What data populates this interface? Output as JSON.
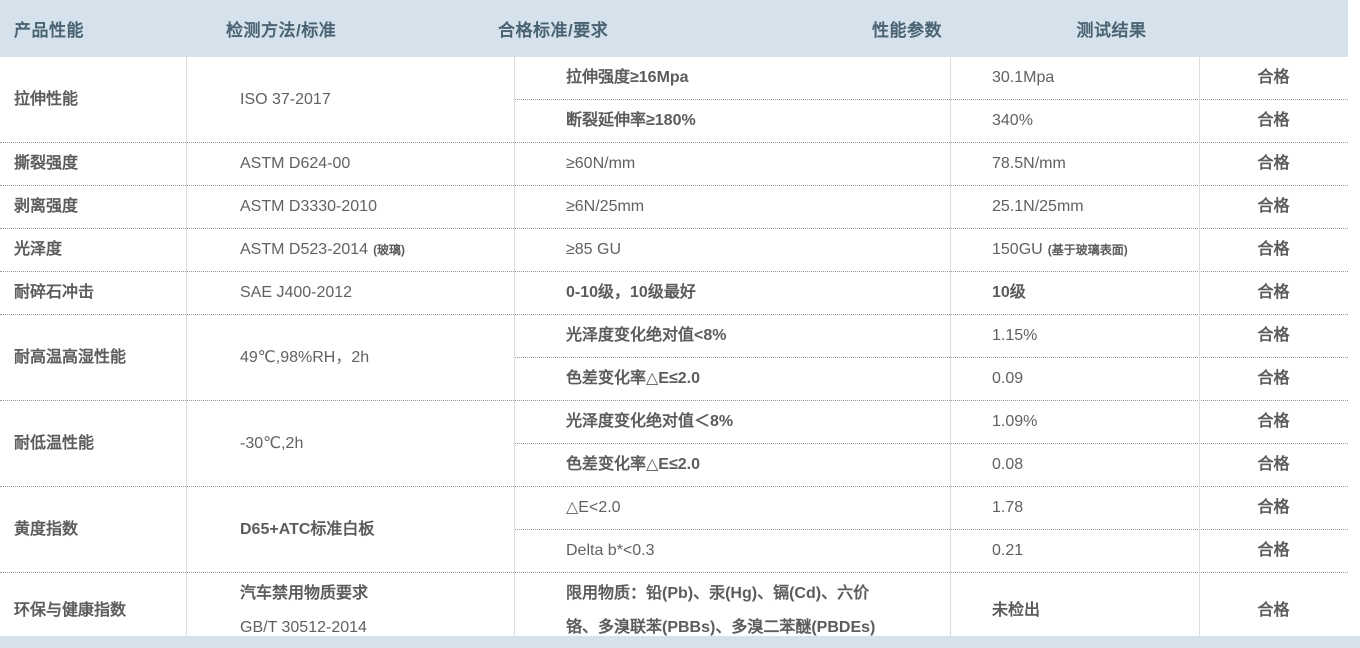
{
  "table": {
    "columns": [
      "产品性能",
      "检测方法/标准",
      "合格标准/要求",
      "性能参数",
      "测试结果"
    ],
    "groups": [
      {
        "property": "拉伸性能",
        "method": "ISO 37-2017",
        "rows": [
          {
            "requirement": "拉伸强度≥16Mpa",
            "value": "30.1Mpa",
            "result": "合格"
          },
          {
            "requirement": "断裂延伸率≥180%",
            "value": "340%",
            "result": "合格"
          }
        ]
      },
      {
        "property": "撕裂强度",
        "method": "ASTM D624-00",
        "rows": [
          {
            "requirement": "≥60N/mm",
            "value": "78.5N/mm",
            "result": "合格"
          }
        ]
      },
      {
        "property": "剥离强度",
        "method": "ASTM D3330-2010",
        "rows": [
          {
            "requirement": "≥6N/25mm",
            "value": "25.1N/25mm",
            "result": "合格"
          }
        ]
      },
      {
        "property": "光泽度",
        "method": "ASTM D523-2014",
        "method_note": "(玻璃)",
        "rows": [
          {
            "requirement": "≥85 GU",
            "value": "150GU",
            "value_note": "(基于玻璃表面)",
            "result": "合格"
          }
        ]
      },
      {
        "property": "耐碎石冲击",
        "method": "SAE J400-2012",
        "rows": [
          {
            "requirement": "0-10级，10级最好",
            "value": "10级",
            "result": "合格"
          }
        ]
      },
      {
        "property": "耐高温高湿性能",
        "method": "49℃,98%RH，2h",
        "rows": [
          {
            "requirement": "光泽度变化绝对值<8%",
            "value": "1.15%",
            "result": "合格"
          },
          {
            "requirement": "色差变化率△E≤2.0",
            "value": "0.09",
            "result": "合格"
          }
        ]
      },
      {
        "property": "耐低温性能",
        "method": "-30℃,2h",
        "rows": [
          {
            "requirement": "光泽度变化绝对值＜8%",
            "value": "1.09%",
            "result": "合格"
          },
          {
            "requirement": "色差变化率△E≤2.0",
            "value": "0.08",
            "result": "合格"
          }
        ]
      },
      {
        "property": "黄度指数",
        "method": "D65+ATC标准白板",
        "rows": [
          {
            "requirement": "△E<2.0",
            "value": "1.78",
            "result": "合格"
          },
          {
            "requirement": "Delta b*<0.3",
            "value": "0.21",
            "result": "合格"
          }
        ]
      },
      {
        "property": "环保与健康指数",
        "method": "汽车禁用物质要求",
        "method_line2": "GB/T 30512-2014",
        "rows": [
          {
            "requirement": "限用物质：铅(Pb)、汞(Hg)、镉(Cd)、六价铬、多溴联苯(PBBs)、多溴二苯醚(PBDEs)",
            "value": "未检出",
            "result": "合格"
          }
        ]
      }
    ],
    "colors": {
      "header_bg": "#d5e2ec",
      "header_text": "#4a6372",
      "body_text": "#616161",
      "dotted_divider": "#9a9a9a",
      "column_rule": "#dddddd",
      "footer_strip_bg": "#d5e2ec"
    }
  }
}
